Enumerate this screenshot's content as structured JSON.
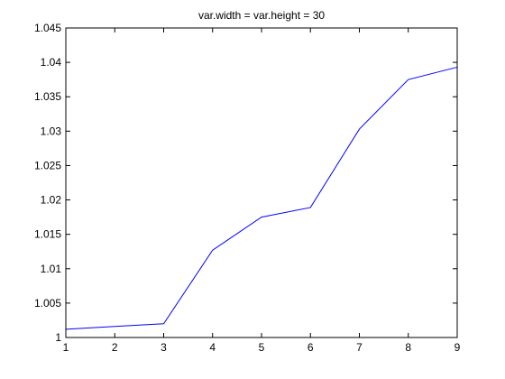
{
  "chart_data": {
    "type": "line",
    "title": "var.width  = var.height = 30",
    "xlabel": "",
    "ylabel": "",
    "xlim": [
      1,
      9
    ],
    "ylim": [
      1,
      1.045
    ],
    "x_ticks": [
      1,
      2,
      3,
      4,
      5,
      6,
      7,
      8,
      9
    ],
    "y_ticks": [
      1,
      1.005,
      1.01,
      1.015,
      1.02,
      1.025,
      1.03,
      1.035,
      1.04,
      1.045
    ],
    "x_tick_labels": [
      "1",
      "2",
      "3",
      "4",
      "5",
      "6",
      "7",
      "8",
      "9"
    ],
    "y_tick_labels": [
      "1",
      "1.005",
      "1.01",
      "1.015",
      "1.02",
      "1.025",
      "1.03",
      "1.035",
      "1.04",
      "1.045"
    ],
    "grid": false,
    "legend": "none",
    "series": [
      {
        "color": "#0000ff",
        "x": [
          1,
          2,
          3,
          4,
          5,
          6,
          7,
          8,
          9
        ],
        "y": [
          1.0012,
          1.0016,
          1.002,
          1.0127,
          1.0175,
          1.0189,
          1.0303,
          1.0375,
          1.0393
        ]
      }
    ]
  }
}
